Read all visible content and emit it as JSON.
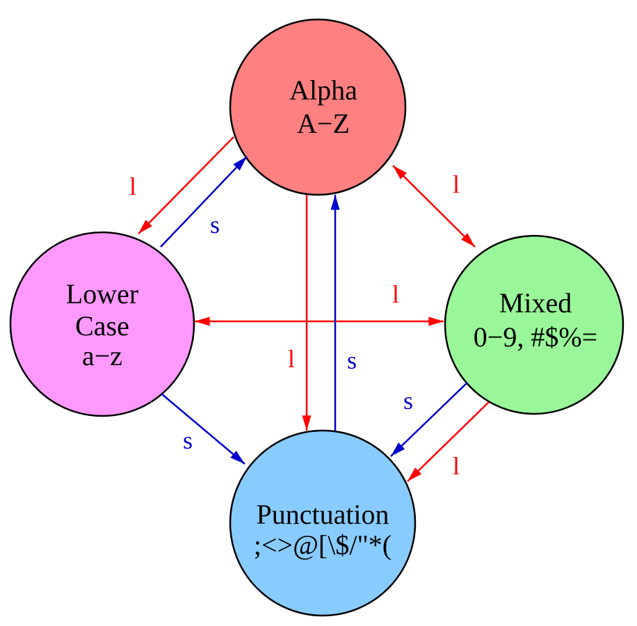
{
  "nodes": {
    "alpha": {
      "lines": [
        "Alpha",
        "A−Z"
      ],
      "fill": "#ff8080"
    },
    "lower": {
      "lines": [
        "Lower",
        "Case",
        "a−z"
      ],
      "fill": "#ff99ff"
    },
    "mixed": {
      "lines": [
        "Mixed",
        "0−9, #$%="
      ],
      "fill": "#99f799"
    },
    "punct": {
      "lines": [
        "Punctuation",
        ";<>@[\\$/\"*("
      ],
      "fill": "#88ccff"
    }
  },
  "edge_labels": {
    "latch": "l",
    "shift": "s"
  },
  "colors": {
    "latch": "#ff0000",
    "shift": "#0000cc"
  }
}
